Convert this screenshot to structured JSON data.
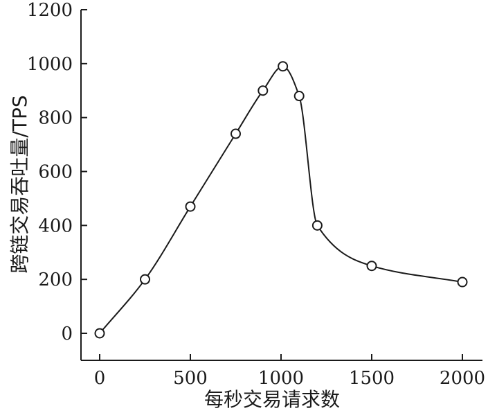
{
  "chart_data": {
    "type": "line",
    "xlabel": "每秒交易请求数",
    "ylabel": "跨链交易吞吐量/TPS",
    "xlim": [
      -100,
      2100
    ],
    "ylim": [
      -100,
      1200
    ],
    "x_ticks": [
      0,
      500,
      1000,
      1500,
      2000
    ],
    "x_tick_labels": [
      "0",
      "500",
      "1000",
      "1500",
      "2000"
    ],
    "y_ticks": [
      0,
      200,
      400,
      600,
      800,
      1000,
      1200
    ],
    "y_tick_labels": [
      "0",
      "200",
      "400",
      "600",
      "800",
      "1000",
      "1200"
    ],
    "grid": false,
    "marker": "open-circle",
    "series": [
      {
        "x": [
          0,
          250,
          500,
          750,
          900,
          1010,
          1100,
          1200,
          1500,
          2000
        ],
        "y": [
          0,
          200,
          470,
          740,
          900,
          990,
          880,
          400,
          250,
          190
        ]
      }
    ]
  }
}
